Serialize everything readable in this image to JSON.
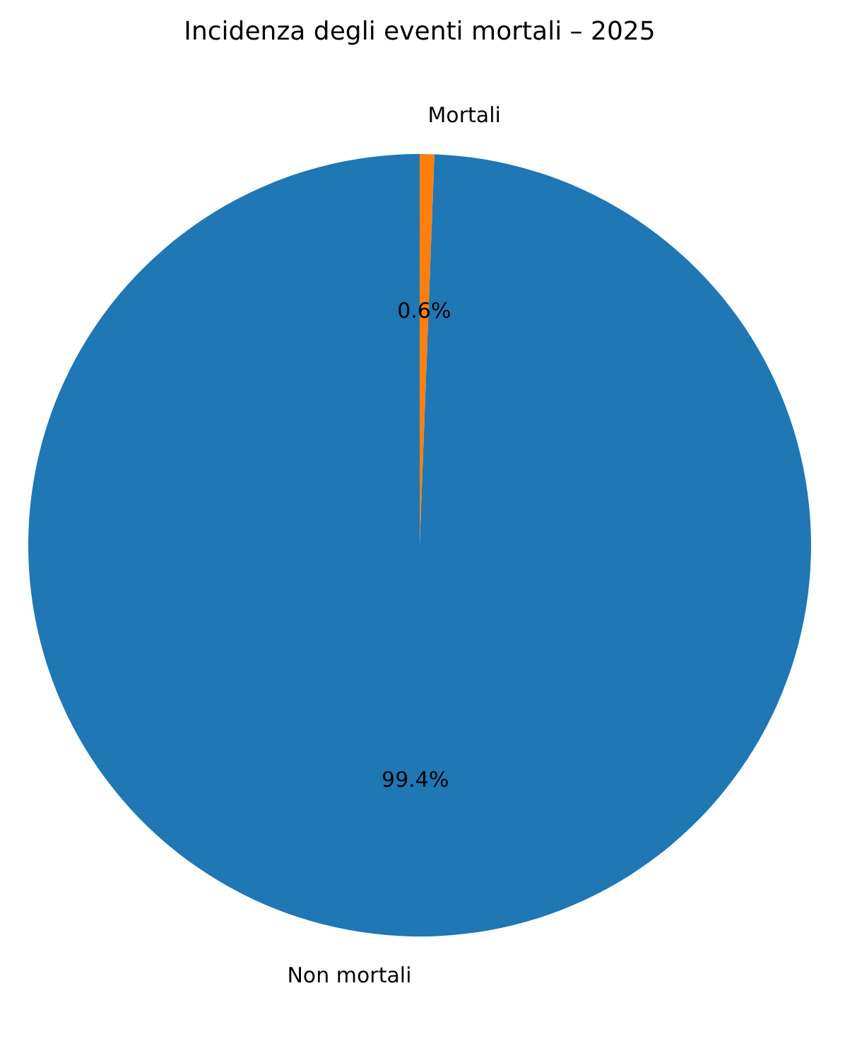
{
  "chart_data": {
    "type": "pie",
    "title": "Incidenza degli eventi mortali – 2025",
    "categories": [
      "Mortali",
      "Non mortali"
    ],
    "values": [
      0.6,
      99.4
    ],
    "colors": [
      "#ff7f0e",
      "#1f77b4"
    ],
    "value_labels": [
      "0.6%",
      "99.4%"
    ]
  }
}
